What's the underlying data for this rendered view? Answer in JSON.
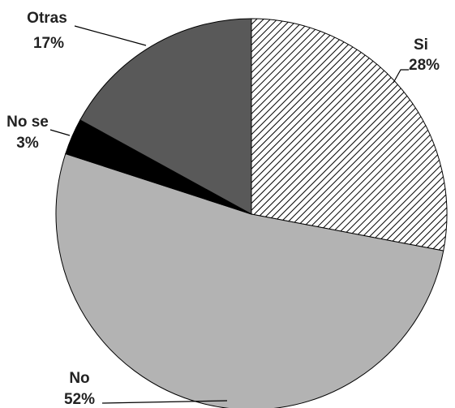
{
  "chart_data": {
    "type": "pie",
    "slices": [
      {
        "name": "Si",
        "label": "Si",
        "pct_label": "28%",
        "value": 28,
        "fill": "hatch"
      },
      {
        "name": "No",
        "label": "No",
        "pct_label": "52%",
        "value": 52,
        "fill": "#b3b3b3"
      },
      {
        "name": "No se",
        "label": "No se",
        "pct_label": "3%",
        "value": 3,
        "fill": "#000000"
      },
      {
        "name": "Otras",
        "label": "Otras",
        "pct_label": "17%",
        "value": 17,
        "fill": "#595959"
      }
    ],
    "start": "12 o'clock",
    "direction": "clockwise",
    "legend": "none"
  }
}
